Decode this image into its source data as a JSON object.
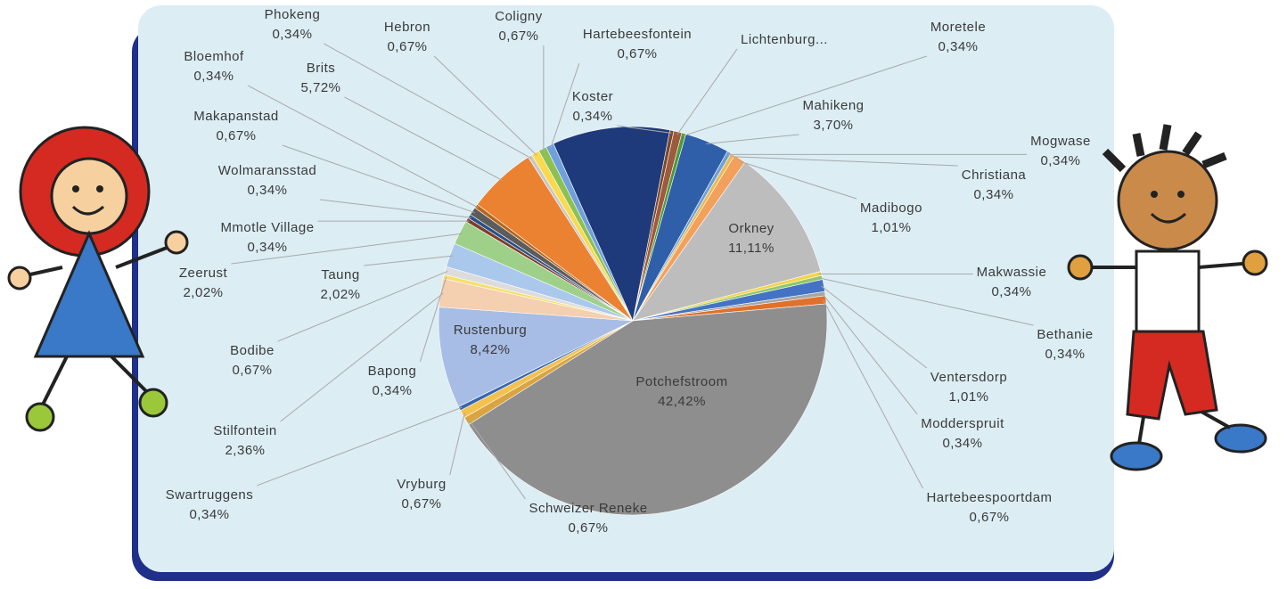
{
  "chart_data": {
    "type": "pie",
    "categories": [
      "Koster",
      "Lichtenburg...",
      "Moretele",
      "Mahikeng",
      "Mogwase",
      "Christiana",
      "Madibogo",
      "Orkney",
      "Makwassie",
      "Bethanie",
      "Ventersdorp",
      "Modderspruit",
      "Hartebeespoortdam",
      "Potchefstroom",
      "Schweizer Reneke",
      "Vryburg",
      "Swartruggens",
      "Rustenburg",
      "Stilfontein",
      "Bapong",
      "Bodibe",
      "Taung",
      "Zeerust",
      "Mmotle Village",
      "Wolmaransstad",
      "Makapanstad",
      "Bloemhof",
      "Brits",
      "Phokeng",
      "Hebron",
      "Coligny",
      "Hartebeesfontein",
      null
    ],
    "values": [
      0.34,
      0.67,
      0.34,
      3.7,
      0.34,
      0.34,
      1.01,
      11.11,
      0.34,
      0.34,
      1.01,
      0.34,
      0.67,
      42.42,
      0.67,
      0.67,
      0.34,
      8.42,
      2.36,
      0.34,
      0.67,
      2.02,
      2.02,
      0.34,
      0.34,
      0.67,
      0.34,
      5.72,
      0.34,
      0.67,
      0.67,
      0.67,
      9.76
    ],
    "value_labels": [
      "0,34%",
      null,
      "0,34%",
      "3,70%",
      "0,34%",
      "0,34%",
      "1,01%",
      "11,11%",
      "0,34%",
      "0,34%",
      "1,01%",
      "0,34%",
      "0,67%",
      "42,42%",
      "0,67%",
      "0,67%",
      "0,34%",
      "8,42%",
      "2,36%",
      "0,34%",
      "0,67%",
      "2,02%",
      "2,02%",
      "0,34%",
      "0,34%",
      "0,67%",
      "0,34%",
      "5,72%",
      "0,34%",
      "0,67%",
      "0,67%",
      "0,67%",
      null
    ],
    "colors": [
      "#7a4a2e",
      "#9e5a3c",
      "#4a9a3a",
      "#2f5fa8",
      "#6e9fd8",
      "#e9ba55",
      "#f2a05c",
      "#bdbdbd",
      "#f5d24a",
      "#8fc86a",
      "#4472c4",
      "#a5a5a5",
      "#e0702a",
      "#8e8e8e",
      "#d9a441",
      "#f2c14e",
      "#3566b0",
      "#a7bde6",
      "#f4cfb0",
      "#f7de6a",
      "#dcdcdc",
      "#a9c8ec",
      "#9fd08a",
      "#7b3f2a",
      "#2b4f86",
      "#5c5c5c",
      "#b5651d",
      "#ea8232",
      "#c8c8c8",
      "#f9d94e",
      "#8cc152",
      "#6fa0dc",
      "#1f3a7a"
    ]
  }
}
